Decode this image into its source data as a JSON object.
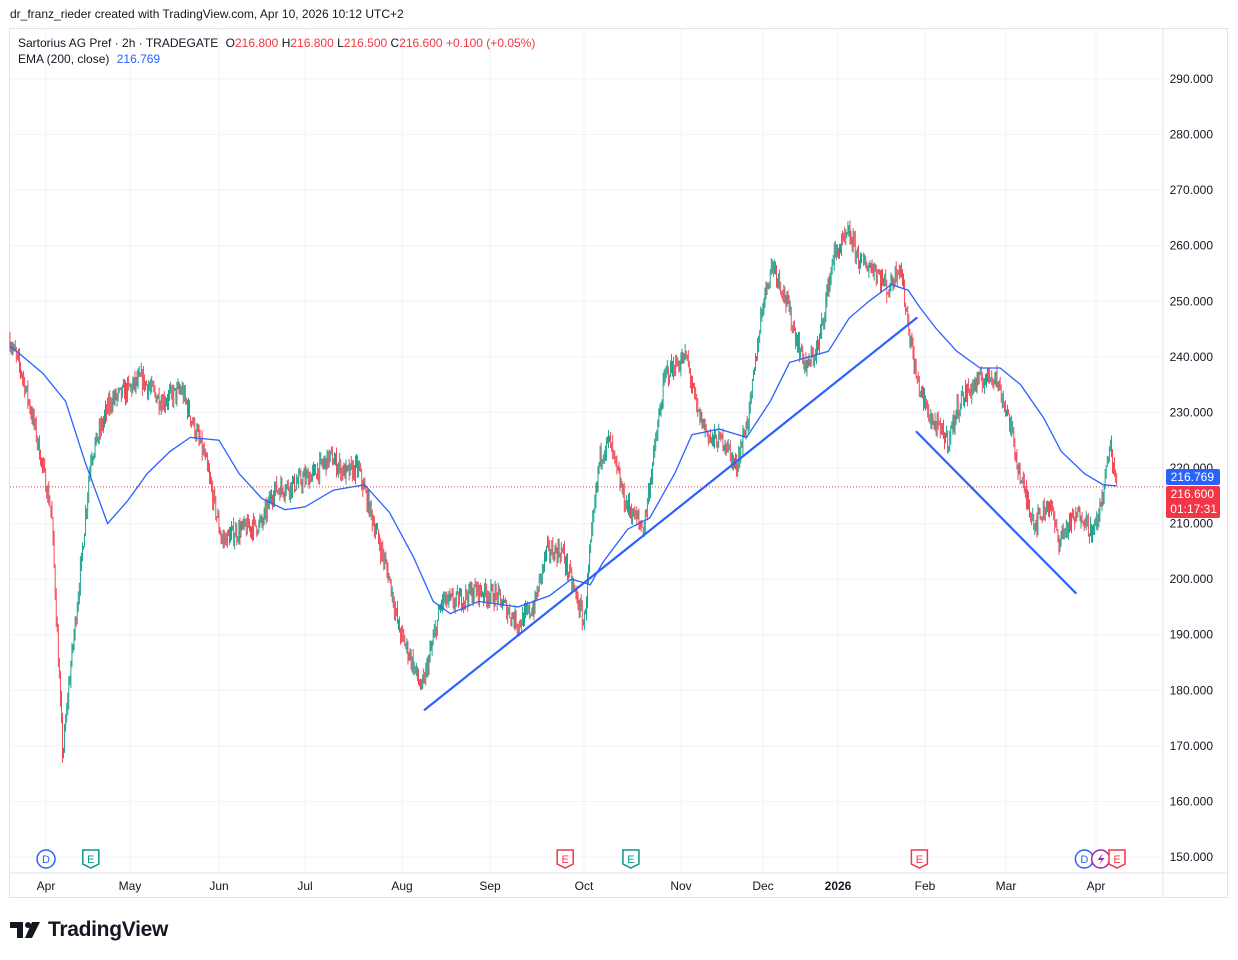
{
  "header": {
    "attribution": "dr_franz_rieder created with TradingView.com, Apr 10, 2026 10:12 UTC+2"
  },
  "legend": {
    "symbol": "Sartorius AG Pref · 2h · TRADEGATE",
    "o_label": "O",
    "o_value": "216.800",
    "h_label": "H",
    "h_value": "216.800",
    "l_label": "L",
    "l_value": "216.500",
    "c_label": "C",
    "c_value": "216.600",
    "change": "+0.100 (+0.05%)",
    "ema_label": "EMA (200, close)",
    "ema_value": "216.769"
  },
  "price_badges": {
    "ema": "216.769",
    "last": "216.600",
    "countdown": "01:17:31"
  },
  "footer": {
    "brand": "TradingView"
  },
  "colors": {
    "up": "#089981",
    "down": "#f23645",
    "ema": "#2962ff",
    "trendline": "#2962ff",
    "grid": "#f0f3fa",
    "earnings": "#f23645",
    "dividend": "#2962ff",
    "split": "#9c27b0"
  },
  "chart_data": {
    "type": "candlestick",
    "ylim": [
      147,
      297
    ],
    "y_ticks": [
      150,
      160,
      170,
      180,
      190,
      200,
      210,
      220,
      230,
      240,
      250,
      260,
      270,
      280,
      290
    ],
    "y_tick_labels": [
      "150.000",
      "160.000",
      "170.000",
      "180.000",
      "190.000",
      "200.000",
      "210.000",
      "220.000",
      "230.000",
      "240.000",
      "250.000",
      "260.000",
      "270.000",
      "280.000",
      "290.000"
    ],
    "x_labels": [
      {
        "label": "Apr",
        "date": "2025-04-01"
      },
      {
        "label": "May",
        "date": "2025-05-01"
      },
      {
        "label": "Jun",
        "date": "2025-06-01"
      },
      {
        "label": "Jul",
        "date": "2025-07-01"
      },
      {
        "label": "Aug",
        "date": "2025-08-01"
      },
      {
        "label": "Sep",
        "date": "2025-09-01"
      },
      {
        "label": "Oct",
        "date": "2025-10-01"
      },
      {
        "label": "Nov",
        "date": "2025-11-01"
      },
      {
        "label": "Dec",
        "date": "2025-12-01"
      },
      {
        "label": "2026",
        "date": "2026-01-01"
      },
      {
        "label": "Feb",
        "date": "2026-02-01"
      },
      {
        "label": "Mar",
        "date": "2026-03-01"
      },
      {
        "label": "Apr",
        "date": "2026-04-01"
      }
    ],
    "price_path": [
      [
        "2025-03-20",
        243
      ],
      [
        "2025-03-24",
        237
      ],
      [
        "2025-03-28",
        228
      ],
      [
        "2025-04-03",
        212
      ],
      [
        "2025-04-07",
        168
      ],
      [
        "2025-04-09",
        180
      ],
      [
        "2025-04-14",
        205
      ],
      [
        "2025-04-17",
        222
      ],
      [
        "2025-04-24",
        232
      ],
      [
        "2025-04-30",
        234
      ],
      [
        "2025-05-05",
        236
      ],
      [
        "2025-05-12",
        232
      ],
      [
        "2025-05-19",
        234
      ],
      [
        "2025-05-23",
        228
      ],
      [
        "2025-05-27",
        222
      ],
      [
        "2025-06-02",
        207
      ],
      [
        "2025-06-09",
        209
      ],
      [
        "2025-06-16",
        210
      ],
      [
        "2025-06-20",
        216
      ],
      [
        "2025-06-27",
        217
      ],
      [
        "2025-07-04",
        219
      ],
      [
        "2025-07-09",
        222
      ],
      [
        "2025-07-14",
        219
      ],
      [
        "2025-07-18",
        220
      ],
      [
        "2025-07-23",
        210
      ],
      [
        "2025-07-28",
        200
      ],
      [
        "2025-07-31",
        191
      ],
      [
        "2025-08-04",
        186
      ],
      [
        "2025-08-08",
        180
      ],
      [
        "2025-08-12",
        189
      ],
      [
        "2025-08-15",
        196
      ],
      [
        "2025-08-20",
        196
      ],
      [
        "2025-08-27",
        198
      ],
      [
        "2025-09-03",
        197
      ],
      [
        "2025-09-10",
        192
      ],
      [
        "2025-09-15",
        195
      ],
      [
        "2025-09-19",
        205
      ],
      [
        "2025-09-24",
        205
      ],
      [
        "2025-09-29",
        196
      ],
      [
        "2025-10-01",
        192
      ],
      [
        "2025-10-03",
        205
      ],
      [
        "2025-10-06",
        222
      ],
      [
        "2025-10-09",
        225
      ],
      [
        "2025-10-14",
        214
      ],
      [
        "2025-10-20",
        209
      ],
      [
        "2025-10-27",
        237
      ],
      [
        "2025-11-03",
        240
      ],
      [
        "2025-11-07",
        230
      ],
      [
        "2025-11-12",
        225
      ],
      [
        "2025-11-17",
        225
      ],
      [
        "2025-11-21",
        220
      ],
      [
        "2025-11-26",
        230
      ],
      [
        "2025-12-01",
        250
      ],
      [
        "2025-12-05",
        257
      ],
      [
        "2025-12-10",
        251
      ],
      [
        "2025-12-15",
        243
      ],
      [
        "2025-12-19",
        238
      ],
      [
        "2025-12-24",
        242
      ],
      [
        "2025-12-30",
        258
      ],
      [
        "2026-01-05",
        262
      ],
      [
        "2026-01-09",
        257
      ],
      [
        "2026-01-14",
        256
      ],
      [
        "2026-01-19",
        252
      ],
      [
        "2026-01-23",
        257
      ],
      [
        "2026-01-26",
        246
      ],
      [
        "2026-01-29",
        236
      ],
      [
        "2026-02-02",
        230
      ],
      [
        "2026-02-04",
        228
      ],
      [
        "2026-02-09",
        225
      ],
      [
        "2026-02-13",
        232
      ],
      [
        "2026-02-18",
        235
      ],
      [
        "2026-02-25",
        237
      ],
      [
        "2026-03-02",
        229
      ],
      [
        "2026-03-06",
        218
      ],
      [
        "2026-03-11",
        210
      ],
      [
        "2026-03-16",
        214
      ],
      [
        "2026-03-19",
        207
      ],
      [
        "2026-03-23",
        210
      ],
      [
        "2026-03-27",
        212
      ],
      [
        "2026-03-31",
        208
      ],
      [
        "2026-04-03",
        213
      ],
      [
        "2026-04-07",
        224
      ],
      [
        "2026-04-10",
        216.6
      ]
    ],
    "ema_200": [
      [
        "2025-03-20",
        242
      ],
      [
        "2025-03-31",
        237
      ],
      [
        "2025-04-08",
        232
      ],
      [
        "2025-04-15",
        221
      ],
      [
        "2025-04-23",
        210
      ],
      [
        "2025-04-30",
        214
      ],
      [
        "2025-05-07",
        219
      ],
      [
        "2025-05-15",
        223
      ],
      [
        "2025-05-22",
        225.5
      ],
      [
        "2025-06-01",
        225
      ],
      [
        "2025-06-08",
        219
      ],
      [
        "2025-06-16",
        214.5
      ],
      [
        "2025-06-24",
        212.5
      ],
      [
        "2025-07-01",
        213
      ],
      [
        "2025-07-10",
        216
      ],
      [
        "2025-07-20",
        217
      ],
      [
        "2025-07-28",
        212
      ],
      [
        "2025-08-05",
        204
      ],
      [
        "2025-08-12",
        196
      ],
      [
        "2025-08-18",
        193.8
      ],
      [
        "2025-08-28",
        196
      ],
      [
        "2025-09-10",
        195
      ],
      [
        "2025-09-20",
        197
      ],
      [
        "2025-09-27",
        200
      ],
      [
        "2025-10-03",
        199
      ],
      [
        "2025-10-07",
        203
      ],
      [
        "2025-10-15",
        209
      ],
      [
        "2025-10-22",
        211
      ],
      [
        "2025-10-30",
        219
      ],
      [
        "2025-11-05",
        226
      ],
      [
        "2025-11-15",
        227
      ],
      [
        "2025-11-25",
        225.5
      ],
      [
        "2025-12-04",
        232
      ],
      [
        "2025-12-12",
        239
      ],
      [
        "2025-12-20",
        240
      ],
      [
        "2025-12-28",
        241
      ],
      [
        "2026-01-05",
        247
      ],
      [
        "2026-01-12",
        250
      ],
      [
        "2026-01-20",
        253
      ],
      [
        "2026-01-26",
        252
      ],
      [
        "2026-01-30",
        249
      ],
      [
        "2026-02-05",
        245
      ],
      [
        "2026-02-12",
        241
      ],
      [
        "2026-02-20",
        238
      ],
      [
        "2026-02-27",
        238
      ],
      [
        "2026-03-06",
        235
      ],
      [
        "2026-03-14",
        229
      ],
      [
        "2026-03-20",
        223
      ],
      [
        "2026-03-28",
        219
      ],
      [
        "2026-04-04",
        217
      ],
      [
        "2026-04-10",
        216.769
      ]
    ],
    "trendlines": [
      {
        "from": [
          "2025-08-09",
          176.5
        ],
        "to": [
          "2026-01-29",
          247
        ]
      },
      {
        "from": [
          "2026-01-29",
          226.5
        ],
        "to": [
          "2026-03-25",
          197.5
        ]
      }
    ],
    "last_price": 216.6,
    "ema_last": 216.769,
    "events": [
      {
        "type": "dividend",
        "date": "2025-04-01",
        "letter": "D"
      },
      {
        "type": "earnings",
        "date": "2025-04-17",
        "letter": "E"
      },
      {
        "type": "earnings",
        "date": "2025-09-25",
        "letter": "E"
      },
      {
        "type": "earnings",
        "date": "2025-10-16",
        "letter": "E"
      },
      {
        "type": "earnings",
        "date": "2026-01-30",
        "letter": "E"
      },
      {
        "type": "dividend",
        "date": "2026-03-28",
        "letter": "D"
      },
      {
        "type": "split",
        "date": "2026-04-03",
        "letter": ""
      },
      {
        "type": "earnings",
        "date": "2026-04-10",
        "letter": "E"
      }
    ]
  }
}
